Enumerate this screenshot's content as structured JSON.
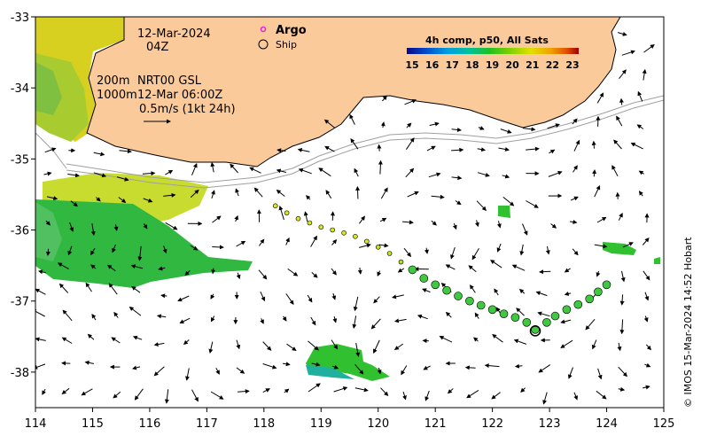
{
  "map": {
    "date": "12-Mar-2024",
    "hour": "04Z",
    "contour_label_200": "200m",
    "product": "NRT00 GSL",
    "contour_label_1000": "1000m",
    "analysis_time": "12-Mar 06:00Z",
    "scale_vector": "0.5m/s (1kt 24h)",
    "credit": "© IMOS 15-Mar-2024 14:52 Hobart"
  },
  "legend": {
    "argo": "Argo",
    "ship": "Ship",
    "colorbar_title": "4h comp, p50, All Sats",
    "colorbar_ticks": [
      "15",
      "16",
      "17",
      "18",
      "19",
      "20",
      "21",
      "22",
      "23"
    ],
    "colorbar_colors": [
      "#08088a",
      "#0050d0",
      "#00a0e0",
      "#00c0a0",
      "#20c020",
      "#80d000",
      "#e0e000",
      "#f0a000",
      "#e05000",
      "#a00000"
    ]
  },
  "axes": {
    "x_ticks": [
      "114",
      "115",
      "116",
      "117",
      "118",
      "119",
      "120",
      "121",
      "122",
      "123",
      "124",
      "125"
    ],
    "y_ticks": [
      "-33",
      "-34",
      "-35",
      "-36",
      "-37",
      "-38"
    ],
    "lon_range": [
      114,
      125
    ],
    "lat_range": [
      -38.5,
      -33
    ]
  },
  "track": {
    "ship_position": {
      "lon": 122.75,
      "lat": -37.42
    },
    "points": [
      {
        "lon": 118.2,
        "lat": -35.66,
        "color": "#d8e820"
      },
      {
        "lon": 118.4,
        "lat": -35.76,
        "color": "#d8e820"
      },
      {
        "lon": 118.6,
        "lat": -35.84,
        "color": "#d8e820"
      },
      {
        "lon": 118.8,
        "lat": -35.9,
        "color": "#d8e820"
      },
      {
        "lon": 119.0,
        "lat": -35.96,
        "color": "#d8e820"
      },
      {
        "lon": 119.2,
        "lat": -36.0,
        "color": "#d8e820"
      },
      {
        "lon": 119.4,
        "lat": -36.04,
        "color": "#d8e820"
      },
      {
        "lon": 119.6,
        "lat": -36.09,
        "color": "#d8e820"
      },
      {
        "lon": 119.8,
        "lat": -36.16,
        "color": "#d8e820"
      },
      {
        "lon": 120.0,
        "lat": -36.24,
        "color": "#c8e020"
      },
      {
        "lon": 120.2,
        "lat": -36.33,
        "color": "#c8e020"
      },
      {
        "lon": 120.4,
        "lat": -36.45,
        "color": "#b8dc20"
      },
      {
        "lon": 120.6,
        "lat": -36.56,
        "color": "#40c840"
      },
      {
        "lon": 120.8,
        "lat": -36.68,
        "color": "#40c840"
      },
      {
        "lon": 121.0,
        "lat": -36.77,
        "color": "#40c840"
      },
      {
        "lon": 121.2,
        "lat": -36.85,
        "color": "#40c840"
      },
      {
        "lon": 121.4,
        "lat": -36.93,
        "color": "#40c840"
      },
      {
        "lon": 121.6,
        "lat": -37.0,
        "color": "#40c840"
      },
      {
        "lon": 121.8,
        "lat": -37.06,
        "color": "#40c840"
      },
      {
        "lon": 122.0,
        "lat": -37.12,
        "color": "#40c840"
      },
      {
        "lon": 122.2,
        "lat": -37.18,
        "color": "#40c840"
      },
      {
        "lon": 122.4,
        "lat": -37.23,
        "color": "#40c840"
      },
      {
        "lon": 122.6,
        "lat": -37.3,
        "color": "#40c840"
      },
      {
        "lon": 122.75,
        "lat": -37.4,
        "color": "#40c840"
      },
      {
        "lon": 122.95,
        "lat": -37.3,
        "color": "#40c840"
      },
      {
        "lon": 123.1,
        "lat": -37.21,
        "color": "#40c840"
      },
      {
        "lon": 123.3,
        "lat": -37.12,
        "color": "#40c840"
      },
      {
        "lon": 123.5,
        "lat": -37.05,
        "color": "#40c840"
      },
      {
        "lon": 123.7,
        "lat": -36.97,
        "color": "#40c840"
      },
      {
        "lon": 123.85,
        "lat": -36.87,
        "color": "#40c840"
      },
      {
        "lon": 124.0,
        "lat": -36.77,
        "color": "#40c840"
      }
    ]
  }
}
